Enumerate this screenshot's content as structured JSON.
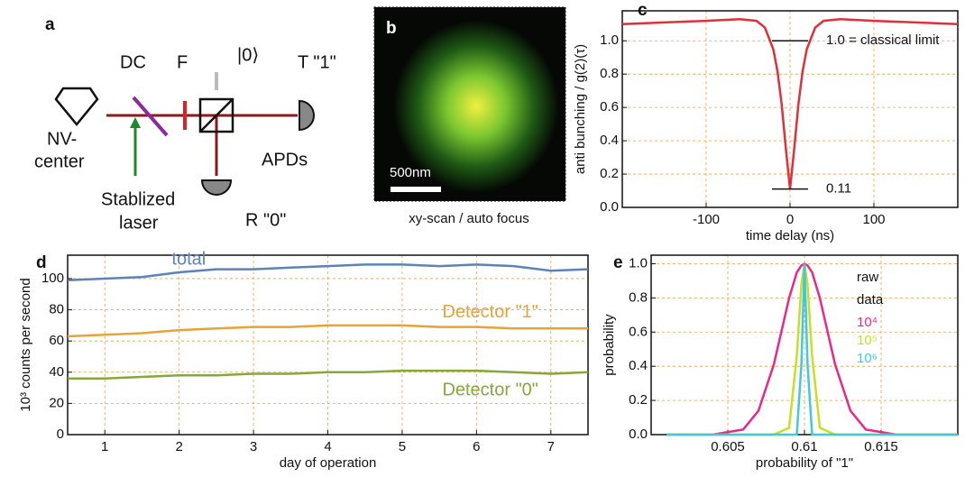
{
  "diagram": {
    "label": "a",
    "dc": "DC",
    "filter": "F",
    "state": "|0⟩",
    "t_detector": "T \"1\"",
    "source": [
      "NV-",
      "center"
    ],
    "apds": "APDs",
    "laser": [
      "Stablized",
      "laser"
    ],
    "r_detector": "R \"0\""
  },
  "image": {
    "label": "b",
    "scale_bar": "500nm",
    "caption": "xy-scan / auto focus"
  },
  "chart_data": [
    {
      "type": "line",
      "label": "c",
      "xlabel": "time delay (ns)",
      "ylabel": "anti bunching / g(2)(τ)",
      "x": [
        -200,
        -150,
        -100,
        -60,
        -40,
        -30,
        -20,
        -15,
        -10,
        -5,
        0,
        5,
        10,
        15,
        20,
        30,
        40,
        60,
        100,
        150,
        200
      ],
      "series": [
        {
          "color": "#e0303a",
          "values": [
            1.1,
            1.11,
            1.12,
            1.13,
            1.12,
            1.08,
            0.95,
            0.82,
            0.62,
            0.35,
            0.11,
            0.35,
            0.62,
            0.82,
            0.95,
            1.08,
            1.12,
            1.13,
            1.12,
            1.11,
            1.1
          ]
        }
      ],
      "xlim": [
        -200,
        200
      ],
      "ylim": [
        0,
        1.18
      ],
      "xticks": [
        -100,
        0,
        100
      ],
      "yticks": [
        {
          "value": 0,
          "label": "0.0"
        },
        {
          "value": 0.2,
          "label": "0.2"
        },
        {
          "value": 0.4,
          "label": "0.4"
        },
        {
          "value": 0.6,
          "label": "0.6"
        },
        {
          "value": 0.8,
          "label": "0.8"
        },
        {
          "value": 1,
          "label": "1.0"
        }
      ],
      "reference_lines": [
        {
          "value": 1.0,
          "label": "1.0 = classical limit"
        },
        {
          "value": 0.11,
          "label": "0.11"
        }
      ],
      "grid": true
    },
    {
      "type": "line",
      "label": "d",
      "xlabel": "day of operation",
      "ylabel": "10³ counts per second",
      "x": [
        0.5,
        1,
        1.5,
        2,
        2.5,
        3,
        3.5,
        4,
        4.5,
        5,
        5.5,
        6,
        6.5,
        7,
        7.5
      ],
      "series": [
        {
          "name": "total",
          "color": "#5b83b8",
          "values": [
            99,
            100,
            101,
            104,
            106,
            106,
            107,
            108,
            109,
            109,
            108,
            109,
            108,
            105,
            106
          ]
        },
        {
          "name": "Detector \"1\"",
          "color": "#e5a33a",
          "values": [
            63,
            64,
            65,
            67,
            68,
            69,
            69,
            70,
            70,
            70,
            69,
            69,
            68,
            68,
            68
          ]
        },
        {
          "name": "Detector \"0\"",
          "color": "#86a83a",
          "values": [
            36,
            36,
            37,
            38,
            38,
            39,
            39,
            40,
            40,
            41,
            41,
            41,
            40,
            39,
            40
          ]
        }
      ],
      "xlim": [
        0.5,
        7.5
      ],
      "ylim": [
        0,
        115
      ],
      "xticks": [
        1,
        2,
        3,
        4,
        5,
        6,
        7
      ],
      "yticks": [
        0,
        20,
        40,
        60,
        80,
        100
      ],
      "grid": true
    },
    {
      "type": "line",
      "label": "e",
      "xlabel": "probability of \"1\"",
      "ylabel": "probability",
      "legend_title": [
        "raw",
        "data"
      ],
      "x": [
        0.601,
        0.604,
        0.606,
        0.607,
        0.608,
        0.609,
        0.6095,
        0.6098,
        0.61,
        0.6102,
        0.6105,
        0.611,
        0.612,
        0.613,
        0.614,
        0.616,
        0.62
      ],
      "series": [
        {
          "name": "10⁴",
          "color": "#e8288a",
          "values": [
            0,
            0,
            0.03,
            0.14,
            0.41,
            0.8,
            0.95,
            0.99,
            1,
            0.99,
            0.95,
            0.8,
            0.41,
            0.14,
            0.03,
            0,
            0
          ]
        },
        {
          "name": "10⁵",
          "color": "#c8e020",
          "values": [
            0,
            0,
            0,
            0,
            0,
            0.04,
            0.46,
            0.88,
            1,
            0.88,
            0.46,
            0.04,
            0,
            0,
            0,
            0,
            0
          ]
        },
        {
          "name": "10⁶",
          "color": "#40c8e0",
          "values": [
            0,
            0,
            0,
            0,
            0,
            0,
            0,
            0.41,
            1,
            0.41,
            0,
            0,
            0,
            0,
            0,
            0,
            0
          ]
        }
      ],
      "xlim": [
        0.6,
        0.62
      ],
      "ylim": [
        0,
        1.05
      ],
      "xticks": [
        0.605,
        0.61,
        0.615
      ],
      "yticks": [
        {
          "value": 0,
          "label": "0.0"
        },
        {
          "value": 0.2,
          "label": "0.2"
        },
        {
          "value": 0.4,
          "label": "0.4"
        },
        {
          "value": 0.6,
          "label": "0.6"
        },
        {
          "value": 0.8,
          "label": "0.8"
        },
        {
          "value": 1,
          "label": "1.0"
        }
      ],
      "grid": true
    }
  ]
}
